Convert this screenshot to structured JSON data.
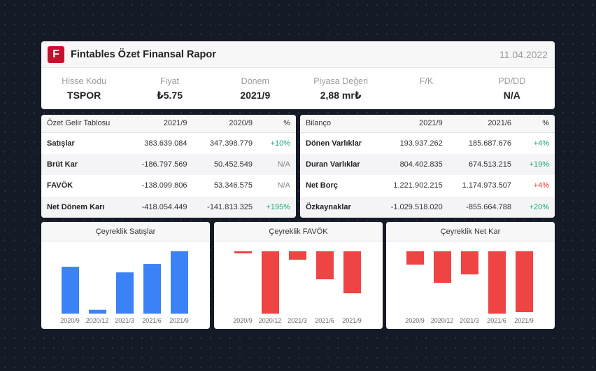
{
  "header": {
    "logo_letter": "F",
    "title": "Fintables Özet Finansal Rapor",
    "date": "11.04.2022",
    "metrics": [
      {
        "label": "Hisse Kodu",
        "value": "TSPOR"
      },
      {
        "label": "Fiyat",
        "value": "₺5.75"
      },
      {
        "label": "Dönem",
        "value": "2021/9"
      },
      {
        "label": "Piyasa Değeri",
        "value": "2,88 mr₺"
      },
      {
        "label": "F/K",
        "value": ""
      },
      {
        "label": "PD/DD",
        "value": "N/A"
      }
    ]
  },
  "income_table": {
    "headers": [
      "Özet Gelir Tablosu",
      "2021/9",
      "2020/9",
      "%"
    ],
    "rows": [
      {
        "name": "Satışlar",
        "v1": "383.639.084",
        "v2": "347.398.779",
        "pct": "+10%",
        "pct_type": "pos"
      },
      {
        "name": "Brüt Kar",
        "v1": "-186.797.569",
        "v2": "50.452.549",
        "pct": "N/A",
        "pct_type": "na"
      },
      {
        "name": "FAVÖK",
        "v1": "-138.099.806",
        "v2": "53.346.575",
        "pct": "N/A",
        "pct_type": "na"
      },
      {
        "name": "Net Dönem Karı",
        "v1": "-418.054.449",
        "v2": "-141.813.325",
        "pct": "+195%",
        "pct_type": "pos"
      }
    ]
  },
  "balance_table": {
    "headers": [
      "Bilanço",
      "2021/9",
      "2021/6",
      "%"
    ],
    "rows": [
      {
        "name": "Dönen Varlıklar",
        "v1": "193.937.262",
        "v2": "185.687.676",
        "pct": "+4%",
        "pct_type": "pos"
      },
      {
        "name": "Duran Varlıklar",
        "v1": "804.402.835",
        "v2": "674.513.215",
        "pct": "+19%",
        "pct_type": "pos"
      },
      {
        "name": "Net Borç",
        "v1": "1.221.902.215",
        "v2": "1.174.973.507",
        "pct": "+4%",
        "pct_type": "neg"
      },
      {
        "name": "Özkaynaklar",
        "v1": "-1.029.518.020",
        "v2": "-855.664.788",
        "pct": "+20%",
        "pct_type": "pos"
      }
    ]
  },
  "colors": {
    "positive_bar": "#3b82f6",
    "negative_bar": "#ef4444",
    "positive_text": "#19a974",
    "negative_text": "#e23b3b"
  },
  "chart_data": [
    {
      "type": "bar",
      "title": "Çeyreklik Satışlar",
      "categories": [
        "2020/9",
        "2020/12",
        "2021/3",
        "2021/6",
        "2021/9"
      ],
      "values": [
        100,
        8,
        88,
        106,
        133
      ],
      "ylim": [
        0,
        133
      ]
    },
    {
      "type": "bar",
      "title": "Çeyreklik FAVÖK",
      "categories": [
        "2020/9",
        "2020/12",
        "2021/3",
        "2021/6",
        "2021/9"
      ],
      "values": [
        -3,
        -89,
        -12,
        -40,
        -60
      ],
      "ylim": [
        -89,
        0
      ]
    },
    {
      "type": "bar",
      "title": "Çeyreklik Net Kar",
      "categories": [
        "2020/9",
        "2020/12",
        "2021/3",
        "2021/6",
        "2021/9"
      ],
      "values": [
        -19,
        -45,
        -33,
        -89,
        -87
      ],
      "ylim": [
        -89,
        0
      ]
    }
  ]
}
